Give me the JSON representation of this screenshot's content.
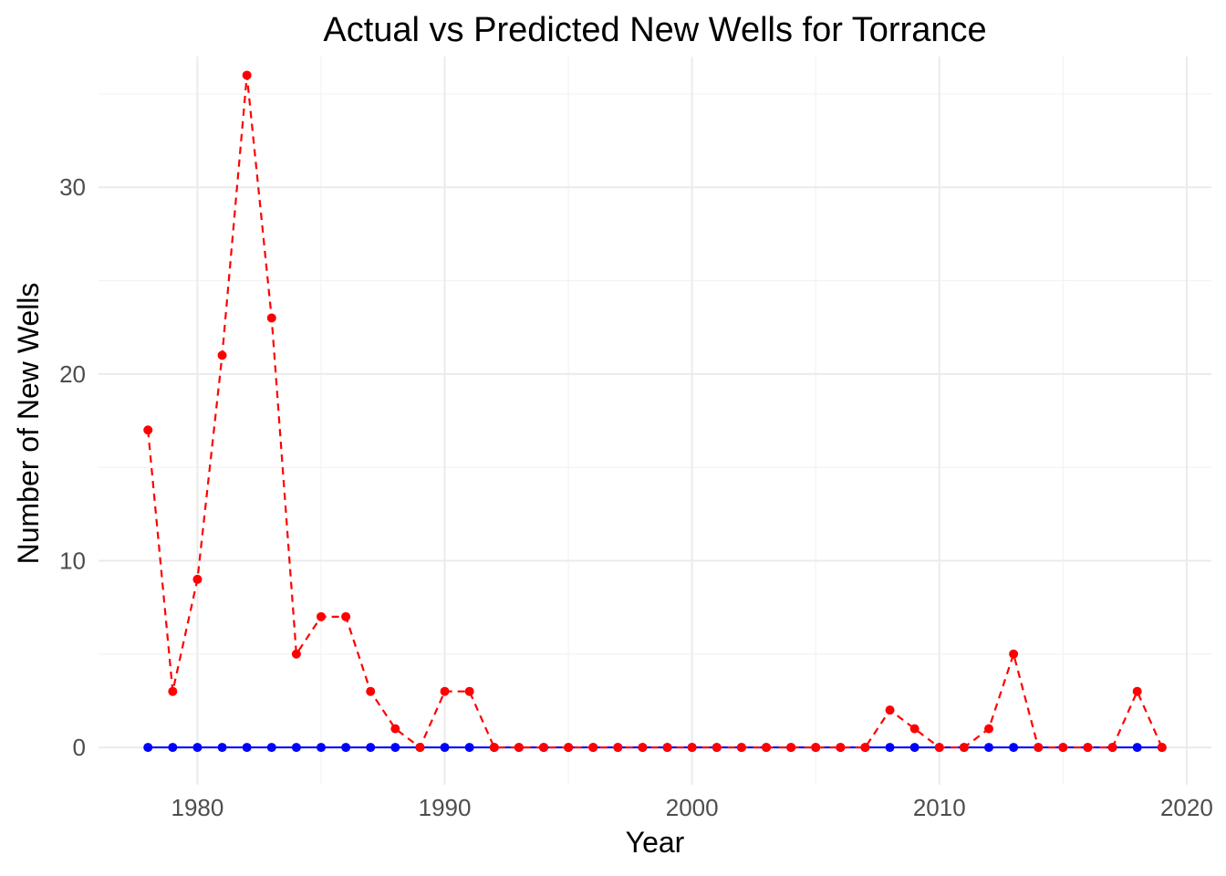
{
  "chart_data": {
    "type": "line",
    "title": "Actual vs Predicted New Wells for Torrance",
    "xlabel": "Year",
    "ylabel": "Number of New Wells",
    "xlim": [
      1976,
      2021
    ],
    "ylim": [
      -2,
      37
    ],
    "x_ticks": [
      1980,
      1990,
      2000,
      2010,
      2020
    ],
    "y_ticks": [
      0,
      10,
      20,
      30
    ],
    "grid": true,
    "legend": "none",
    "x": [
      1978,
      1979,
      1980,
      1981,
      1982,
      1983,
      1984,
      1985,
      1986,
      1987,
      1988,
      1989,
      1990,
      1991,
      1992,
      1993,
      1994,
      1995,
      1996,
      1997,
      1998,
      1999,
      2000,
      2001,
      2002,
      2003,
      2004,
      2005,
      2006,
      2007,
      2008,
      2009,
      2010,
      2011,
      2012,
      2013,
      2014,
      2015,
      2016,
      2017,
      2018,
      2019
    ],
    "series": [
      {
        "color": "#0000ff",
        "line_style": "solid",
        "values": [
          0,
          0,
          0,
          0,
          0,
          0,
          0,
          0,
          0,
          0,
          0,
          0,
          0,
          0,
          0,
          0,
          0,
          0,
          0,
          0,
          0,
          0,
          0,
          0,
          0,
          0,
          0,
          0,
          0,
          0,
          0,
          0,
          0,
          0,
          0,
          0,
          0,
          0,
          0,
          0,
          0,
          0
        ]
      },
      {
        "color": "#ff0000",
        "line_style": "dashed",
        "values": [
          17,
          3,
          9,
          21,
          36,
          23,
          5,
          7,
          7,
          3,
          1,
          0,
          3,
          3,
          0,
          0,
          0,
          0,
          0,
          0,
          0,
          0,
          0,
          0,
          0,
          0,
          0,
          0,
          0,
          0,
          2,
          1,
          0,
          0,
          1,
          5,
          0,
          0,
          0,
          0,
          3,
          0
        ]
      }
    ]
  }
}
